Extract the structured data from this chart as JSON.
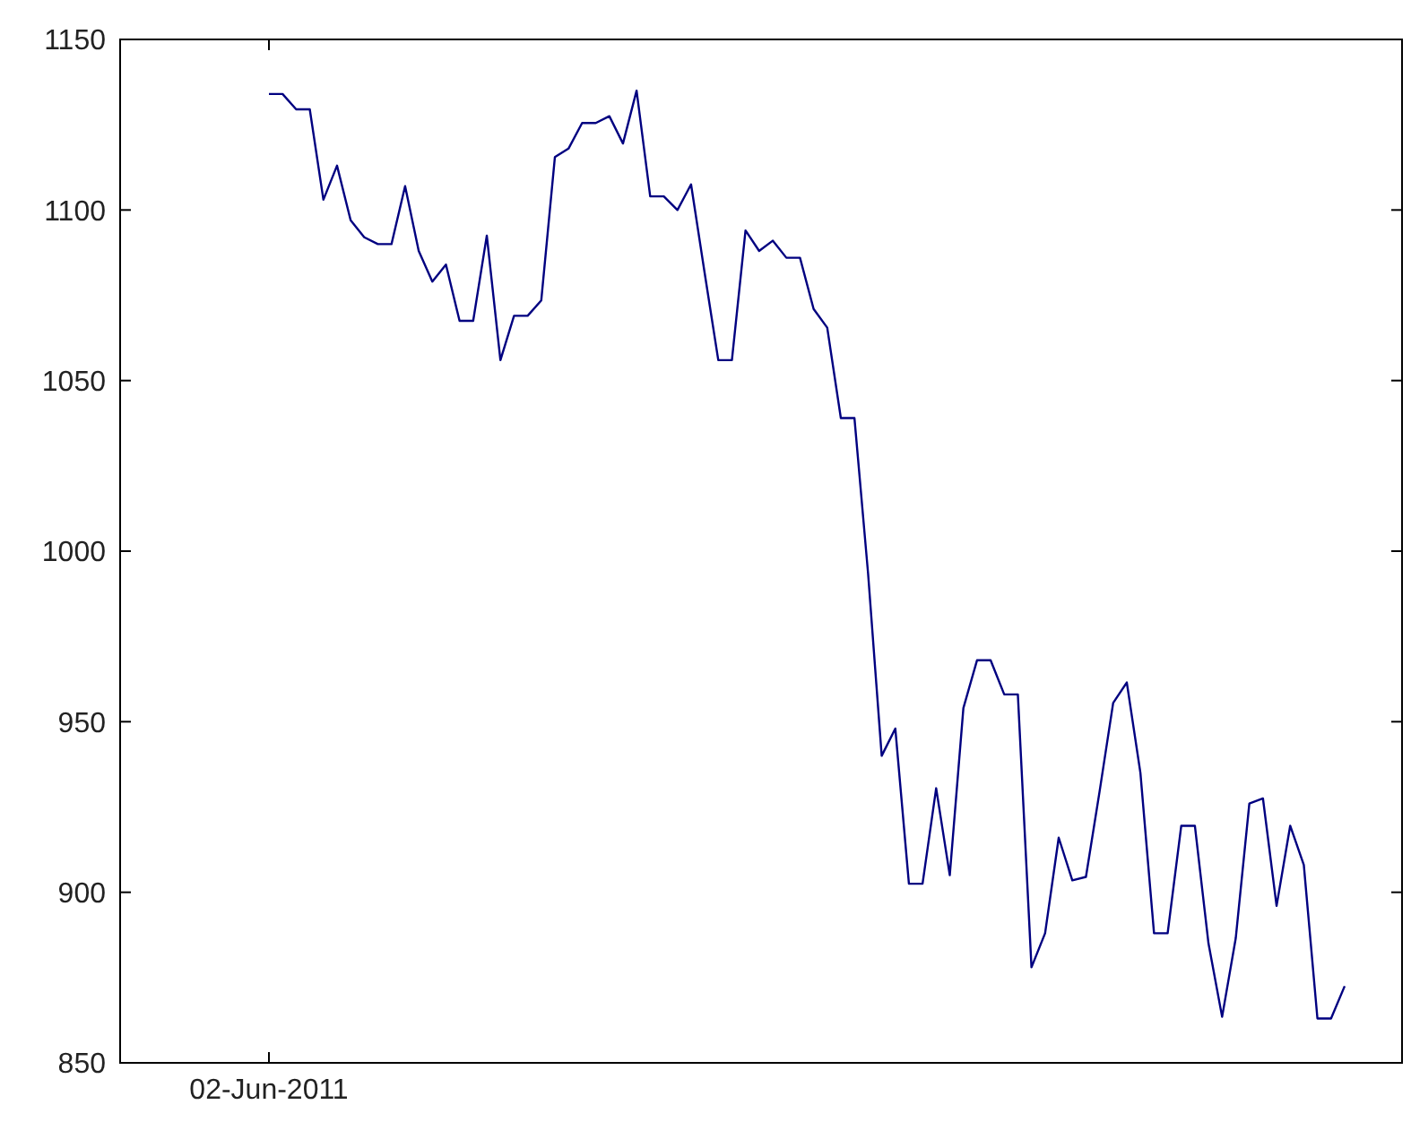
{
  "chart_data": {
    "type": "line",
    "categories": [
      "02-Jun-2011",
      null,
      null,
      null,
      null,
      null,
      null,
      null,
      null,
      null,
      null,
      null,
      null,
      null,
      null,
      null,
      null,
      null,
      null,
      null,
      null,
      null,
      null,
      null,
      null,
      null,
      null,
      null,
      null,
      null,
      null,
      null,
      null,
      null,
      null,
      null,
      null,
      null,
      null,
      null,
      null,
      null,
      null,
      null,
      null,
      null,
      null,
      null,
      null,
      null,
      null,
      null,
      null,
      null,
      null,
      null,
      null,
      null,
      null,
      null,
      null,
      null,
      null,
      null,
      null,
      null,
      null,
      null,
      null,
      null,
      null,
      null,
      null,
      null,
      null,
      null,
      null,
      null,
      null,
      null
    ],
    "series": [
      {
        "color": "#000080",
        "values": [
          1134,
          1134,
          1129.5,
          1129.5,
          1103,
          1113,
          1097,
          1092,
          1090,
          1090,
          1107,
          1088,
          1079,
          1084,
          1067.5,
          1067.5,
          1092.5,
          1056,
          1069,
          1069,
          1073.5,
          1115.5,
          1118,
          1125.5,
          1125.5,
          1127.5,
          1119.5,
          1135,
          1104,
          1104,
          1100,
          1107.5,
          1081.5,
          1056,
          1056,
          1094,
          1088,
          1091,
          1086,
          1086,
          1071,
          1065.5,
          1039,
          1039,
          993.5,
          940,
          948,
          902.5,
          902.5,
          930.5,
          905,
          954,
          968,
          968,
          958,
          958,
          878,
          888,
          916,
          903.5,
          904.5,
          929.5,
          955.5,
          961.5,
          935,
          888,
          888,
          919.5,
          919.5,
          885,
          863.5,
          886.5,
          926,
          927.5,
          896,
          919.5,
          908,
          863,
          863,
          872.5
        ]
      }
    ],
    "ylim": [
      850,
      1150
    ],
    "yticks": [
      850,
      900,
      950,
      1000,
      1050,
      1100,
      1150
    ],
    "grid": false,
    "marker": "none",
    "line_style": "solid"
  }
}
